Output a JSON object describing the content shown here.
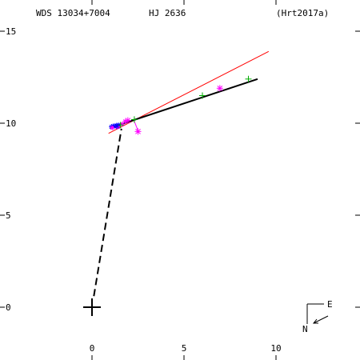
{
  "header": {
    "left": "WDS 13034+7004",
    "center": "HJ 2636",
    "right": "(Hrt2017a)"
  },
  "compass": {
    "east": "E",
    "north": "N"
  },
  "chart_data": {
    "type": "scatter",
    "title": "",
    "xlabel": "",
    "ylabel": "",
    "xlim": [
      -4.9,
      14.6
    ],
    "ylim": [
      -2.8,
      16.7
    ],
    "x_ticks": [
      {
        "value": 0,
        "label": "0"
      },
      {
        "value": 5,
        "label": "5"
      },
      {
        "value": 10,
        "label": "10"
      }
    ],
    "y_ticks": [
      {
        "value": 0,
        "label": "0"
      },
      {
        "value": 5,
        "label": "5"
      },
      {
        "value": 10,
        "label": "10"
      },
      {
        "value": 15,
        "label": "15"
      }
    ],
    "grid": false,
    "primary_star": {
      "x": 0,
      "y": 0
    },
    "connector_dashed": [
      [
        0.1,
        0.6
      ],
      [
        1.6,
        9.7
      ]
    ],
    "orbit_fit_black": [
      [
        1.0,
        9.75
      ],
      [
        9.0,
        12.4
      ]
    ],
    "linear_fit_red": [
      [
        0.9,
        9.45
      ],
      [
        9.6,
        13.9
      ]
    ],
    "residual_line_magenta": [
      [
        2.3,
        10.1
      ],
      [
        2.5,
        9.6
      ]
    ],
    "series": [
      {
        "marker": "plus",
        "color": "#00aa00",
        "points": [
          [
            1.55,
            9.9
          ],
          [
            2.3,
            10.2
          ],
          [
            6.0,
            11.5
          ],
          [
            8.5,
            12.4
          ]
        ]
      },
      {
        "marker": "asterisk",
        "color": "#ff00ff",
        "points": [
          [
            1.95,
            10.15
          ],
          [
            2.5,
            9.55
          ],
          [
            6.95,
            11.9
          ]
        ]
      },
      {
        "marker": "asterisk",
        "color": "#0000ff",
        "points": [
          [
            1.35,
            9.85
          ]
        ]
      }
    ],
    "cluster_points_blue": [
      [
        1.05,
        9.8
      ],
      [
        1.15,
        9.85
      ],
      [
        1.3,
        9.85
      ],
      [
        1.45,
        9.9
      ]
    ],
    "cluster_points_magenta": [
      [
        1.1,
        9.75
      ],
      [
        1.4,
        9.8
      ],
      [
        1.65,
        9.95
      ],
      [
        1.8,
        10.1
      ]
    ]
  }
}
